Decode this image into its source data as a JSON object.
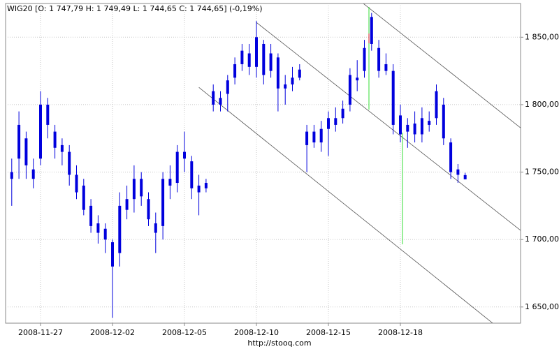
{
  "chart_data": {
    "type": "candlestick",
    "title": "WIG20 [O: 1 747,79  H: 1 749,49  L: 1 744,65  C: 1 744,65] (-0,19%)",
    "source": "http://stooq.com",
    "color": "#0000dd",
    "grid": true,
    "categories": [
      null,
      null,
      null,
      null,
      "2008-11-27",
      null,
      null,
      null,
      null,
      null,
      null,
      null,
      null,
      null,
      "2008-12-02",
      null,
      null,
      null,
      null,
      null,
      null,
      null,
      null,
      null,
      "2008-12-05",
      null,
      null,
      null,
      null,
      null,
      null,
      null,
      null,
      null,
      "2008-12-10",
      null,
      null,
      null,
      null,
      null,
      null,
      null,
      null,
      null,
      "2008-12-15",
      null,
      null,
      null,
      null,
      null,
      null,
      null,
      null,
      null,
      "2008-12-18",
      null,
      null,
      null,
      null,
      null,
      null,
      null,
      null,
      null
    ],
    "open": [
      1750,
      1760,
      1775,
      1752,
      1760,
      1800,
      1780,
      1770,
      1765,
      1748,
      1740,
      1725,
      1712,
      1708,
      1698,
      1690,
      1722,
      1730,
      1745,
      1730,
      1712,
      1710,
      1745,
      1742,
      1765,
      1758,
      1740,
      1738,
      1810,
      1800,
      1808,
      1820,
      1830,
      1838,
      1828,
      1845,
      1825,
      1835,
      1812,
      1815,
      1820,
      1770,
      1780,
      1772,
      1782,
      1790,
      1790,
      1800,
      1820,
      1825,
      1845,
      1842,
      1825,
      1825,
      1792,
      1780,
      1786,
      1778,
      1785,
      1790,
      1800,
      1772,
      1752,
      1747.79
    ],
    "high": [
      1760,
      1795,
      1780,
      1760,
      1810,
      1805,
      1785,
      1775,
      1770,
      1755,
      1745,
      1730,
      1718,
      1712,
      1700,
      1735,
      1740,
      1755,
      1750,
      1735,
      1720,
      1750,
      1755,
      1770,
      1780,
      1762,
      1748,
      1745,
      1815,
      1810,
      1822,
      1835,
      1845,
      1845,
      1862,
      1848,
      1845,
      1838,
      1822,
      1828,
      1830,
      1785,
      1785,
      1788,
      1795,
      1798,
      1803,
      1827,
      1833,
      1848,
      1868,
      1848,
      1838,
      1830,
      1800,
      1790,
      1795,
      1798,
      1795,
      1815,
      1805,
      1775,
      1756,
      1749.49
    ],
    "low": [
      1725,
      1745,
      1745,
      1738,
      1755,
      1775,
      1760,
      1755,
      1740,
      1730,
      1718,
      1705,
      1697,
      1690,
      1642,
      1680,
      1715,
      1720,
      1725,
      1710,
      1690,
      1700,
      1730,
      1735,
      1750,
      1730,
      1718,
      1735,
      1795,
      1795,
      1795,
      1815,
      1825,
      1822,
      1820,
      1815,
      1820,
      1795,
      1800,
      1810,
      1818,
      1750,
      1768,
      1765,
      1762,
      1780,
      1786,
      1795,
      1810,
      1820,
      1840,
      1820,
      1822,
      1778,
      1772,
      1768,
      1772,
      1772,
      1780,
      1785,
      1770,
      1745,
      1742,
      1744.65
    ],
    "close": [
      1745,
      1785,
      1755,
      1745,
      1800,
      1785,
      1768,
      1765,
      1748,
      1735,
      1722,
      1710,
      1705,
      1700,
      1680,
      1725,
      1730,
      1745,
      1732,
      1715,
      1705,
      1745,
      1740,
      1765,
      1760,
      1738,
      1735,
      1742,
      1800,
      1805,
      1818,
      1830,
      1840,
      1828,
      1850,
      1822,
      1838,
      1812,
      1815,
      1820,
      1826,
      1780,
      1772,
      1782,
      1790,
      1785,
      1797,
      1822,
      1818,
      1842,
      1865,
      1825,
      1830,
      1785,
      1778,
      1785,
      1778,
      1790,
      1788,
      1810,
      1775,
      1750,
      1748,
      1744.65
    ],
    "trendlines": [
      {
        "x": [
          48.9,
          70.7
        ],
        "y": [
          1874.8,
          1782.8
        ]
      },
      {
        "x": [
          34.0,
          70.7
        ],
        "y": [
          1860.9,
          1706.8
        ]
      },
      {
        "x": [
          26.0,
          66.8
        ],
        "y": [
          1812.8,
          1638.1
        ]
      }
    ],
    "ylim": [
      1638,
      1875
    ],
    "yticks": [
      {
        "value": 1650,
        "label": "1 650,00"
      },
      {
        "value": 1700,
        "label": "1 700,00"
      },
      {
        "value": 1750,
        "label": "1 750,00"
      },
      {
        "value": 1800,
        "label": "1 800,00"
      },
      {
        "value": 1850,
        "label": "1 850,00"
      }
    ]
  }
}
